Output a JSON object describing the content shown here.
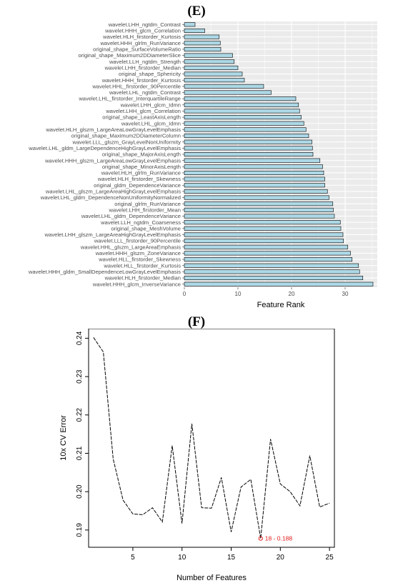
{
  "panels": {
    "e_label": "(E)",
    "f_label": "(F)"
  },
  "chart_data": [
    {
      "type": "bar",
      "orientation": "horizontal",
      "xlabel": "Feature Rank",
      "ylabel": "",
      "xlim": [
        0,
        36
      ],
      "xticks": [
        0,
        10,
        20,
        30
      ],
      "grid": true,
      "bar_color": "#add8e6",
      "background": "#ebebeb",
      "categories": [
        "wavelet.LHH_ngtdm_Contrast",
        "wavelet.HHH_glcm_Correlation",
        "wavelet.HLH_firstorder_Kurtosis",
        "wavelet.HHH_glrlm_RunVariance",
        "original_shape_SurfaceVolumeRatio",
        "original_shape_Maximum2DDiameterSlice",
        "wavelet.LLH_ngtdm_Strength",
        "wavelet.LHH_firstorder_Median",
        "original_shape_Sphericity",
        "wavelet.HHH_firstorder_Kurtosis",
        "wavelet.HHL_firstorder_90Percentile",
        "wavelet.LHL_ngtdm_Contrast",
        "wavelet.LHL_firstorder_InterquartileRange",
        "wavelet.LHH_glcm_Idmn",
        "wavelet.LHH_glcm_Correlation",
        "original_shape_LeastAxisLength",
        "wavelet.LHL_glcm_Idmn",
        "wavelet.HLH_glszm_LargeAreaLowGrayLevelEmphasis",
        "original_shape_Maximum2DDiameterColumn",
        "wavelet.LLL_glszm_GrayLevelNonUniformity",
        "wavelet.LHL_gldm_LargeDependenceHighGrayLevelEmphasis",
        "original_shape_MajorAxisLength",
        "wavelet.HHH_glszm_LargeAreaLowGrayLevelEmphasis",
        "original_shape_MinorAxisLength",
        "wavelet.HLH_glrlm_RunVariance",
        "wavelet.HLH_firstorder_Skewness",
        "original_gldm_DependenceVariance",
        "wavelet.LHL_glszm_LargeAreaHighGrayLevelEmphasis",
        "wavelet.LHL_gldm_DependenceNonUniformityNormalized",
        "original_glrlm_RunVariance",
        "wavelet.LHH_firstorder_Mean",
        "wavelet.LHL_gldm_DependenceVariance",
        "wavelet.LLH_ngtdm_Coarseness",
        "original_shape_MeshVolume",
        "wavelet.LHH_glszm_LargeAreaHighGrayLevelEmphasis",
        "wavelet.LLL_firstorder_90Percentile",
        "wavelet.HHL_glszm_LargeAreaEmphasis",
        "wavelet.HHH_glszm_ZoneVariance",
        "wavelet.HLL_firstorder_Skewness",
        "wavelet.HLL_firstorder_Kurtosis",
        "wavelet.HHH_gldm_SmallDependenceLowGrayLevelEmphasis",
        "wavelet.HLH_firstorder_Median",
        "wavelet.HHH_glcm_InverseVariance"
      ],
      "values": [
        2,
        3.8,
        6.5,
        6.7,
        6.8,
        9,
        9.3,
        10,
        10.8,
        11.2,
        14.8,
        16.2,
        20.8,
        21.3,
        21.5,
        21.8,
        22.3,
        22.7,
        23.2,
        23.8,
        23.9,
        24,
        25.3,
        25.8,
        26,
        26.2,
        26.2,
        26.7,
        27,
        27.7,
        27.8,
        28,
        29.1,
        29.2,
        29.6,
        29.7,
        30.5,
        31,
        31.3,
        32.5,
        32.7,
        33.3,
        35.2
      ]
    },
    {
      "type": "line",
      "xlabel": "Number of Features",
      "ylabel": "10x CV Error",
      "xlim": [
        0.5,
        25.5
      ],
      "ylim": [
        0.1855,
        0.2425
      ],
      "xticks": [
        5,
        10,
        15,
        20,
        25
      ],
      "yticks": [
        0.19,
        0.2,
        0.21,
        0.22,
        0.23,
        0.24
      ],
      "ytick_labels": [
        "0.19",
        "0.20",
        "0.21",
        "0.22",
        "0.23",
        "0.24"
      ],
      "grid": false,
      "x": [
        1,
        2,
        3,
        4,
        5,
        6,
        7,
        8,
        9,
        10,
        11,
        12,
        13,
        14,
        15,
        16,
        17,
        18,
        19,
        20,
        21,
        22,
        23,
        24,
        25
      ],
      "y": [
        0.2402,
        0.2364,
        0.2085,
        0.1978,
        0.1942,
        0.194,
        0.1958,
        0.1921,
        0.212,
        0.1917,
        0.2177,
        0.1958,
        0.1957,
        0.2037,
        0.1895,
        0.2012,
        0.2032,
        0.1878,
        0.2137,
        0.202,
        0.2,
        0.1963,
        0.2094,
        0.196,
        0.197
      ],
      "annotation": {
        "x": 18,
        "y": 0.1878,
        "text": "18 - 0.188",
        "color": "#e41a1c"
      }
    }
  ]
}
